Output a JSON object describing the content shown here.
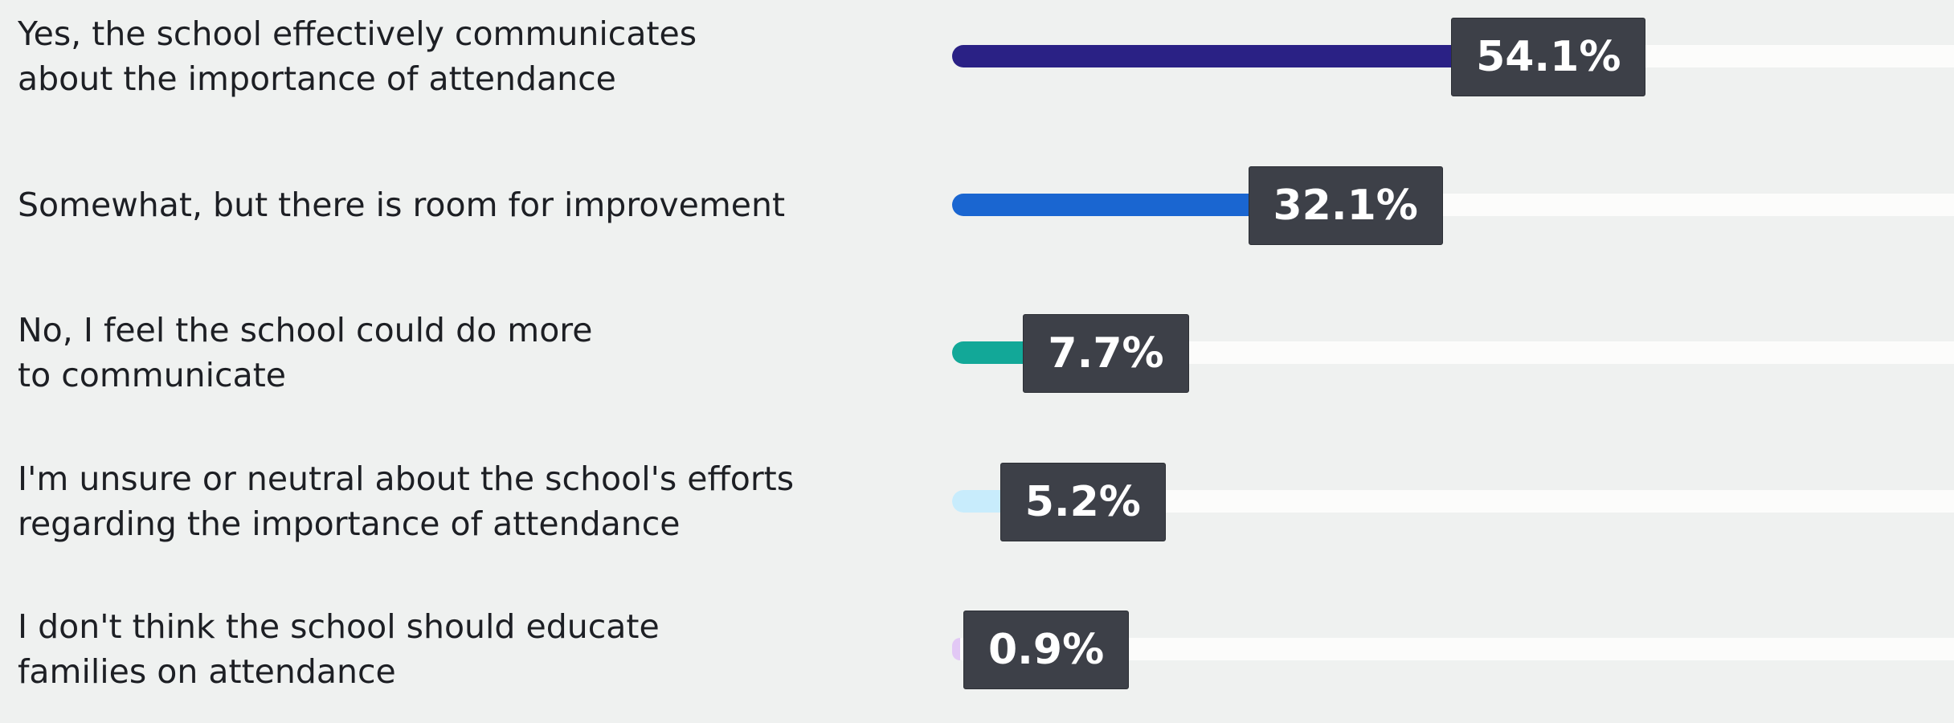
{
  "chart_data": {
    "type": "bar",
    "categories": [
      "Yes, the school effectively communicates\nabout the importance of attendance",
      "Somewhat, but there is room for improvement",
      "No, I feel the school could do more\nto communicate",
      "I'm unsure or neutral about the school's efforts\nregarding the importance of attendance",
      "I don't think the school should educate\nfamilies on attendance"
    ],
    "values": [
      54.1,
      32.1,
      7.7,
      5.2,
      0.9
    ],
    "value_labels": [
      "54.1%",
      "32.1%",
      "7.7%",
      "5.2%",
      "0.9%"
    ],
    "colors": [
      "#2a2185",
      "#1a66d1",
      "#12a898",
      "#c8ecfc",
      "#e2c8f5"
    ],
    "xlim": [
      0,
      100
    ]
  }
}
